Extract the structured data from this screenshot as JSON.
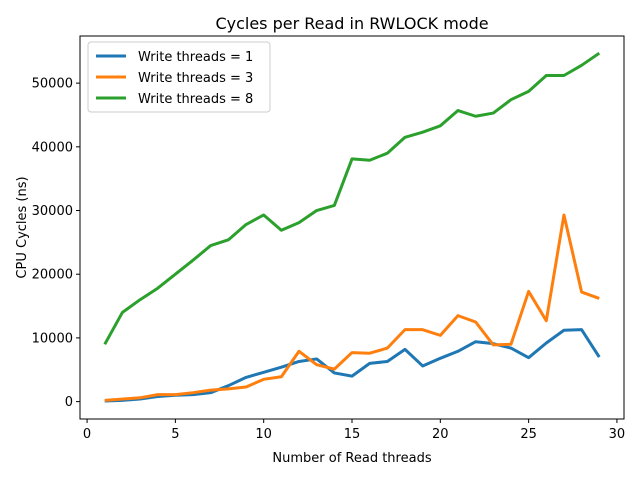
{
  "chart_data": {
    "type": "line",
    "title": "Cycles per Read in RWLOCK mode",
    "xlabel": "Number of Read threads",
    "ylabel": "CPU Cycles (ns)",
    "xlim": [
      -0.4,
      30.4
    ],
    "ylim": [
      -2730,
      57400
    ],
    "xticks": [
      0,
      5,
      10,
      15,
      20,
      25,
      30
    ],
    "yticks": [
      0,
      10000,
      20000,
      30000,
      40000,
      50000
    ],
    "grid": false,
    "legend_position": "top-left",
    "x": [
      1,
      2,
      3,
      4,
      5,
      6,
      7,
      8,
      9,
      10,
      11,
      12,
      13,
      14,
      15,
      16,
      17,
      18,
      19,
      20,
      21,
      22,
      23,
      24,
      25,
      26,
      27,
      28,
      29
    ],
    "series": [
      {
        "name": "Write threads = 1",
        "color": "#1f77b4",
        "values": [
          100,
          200,
          400,
          800,
          1000,
          1100,
          1400,
          2500,
          3800,
          4600,
          5400,
          6300,
          6700,
          4500,
          4000,
          6000,
          6300,
          8200,
          5600,
          6800,
          7900,
          9400,
          9100,
          8400,
          6900,
          9200,
          11200,
          11300,
          7000
        ]
      },
      {
        "name": "Write threads = 3",
        "color": "#ff7f0e",
        "values": [
          200,
          400,
          600,
          1100,
          1100,
          1400,
          1800,
          2000,
          2300,
          3500,
          3900,
          7900,
          5800,
          5100,
          7700,
          7600,
          8400,
          11300,
          11300,
          10400,
          13500,
          12500,
          8900,
          9000,
          17300,
          12700,
          29300,
          17200,
          16200
        ]
      },
      {
        "name": "Write threads = 8",
        "color": "#2ca02c",
        "values": [
          9000,
          14000,
          16000,
          17800,
          20000,
          22200,
          24500,
          25400,
          27800,
          29300,
          26900,
          28100,
          30000,
          30800,
          38100,
          37900,
          39000,
          41500,
          42300,
          43300,
          45700,
          44800,
          45300,
          47400,
          48700,
          51200,
          51200,
          52800,
          54700
        ]
      }
    ]
  }
}
